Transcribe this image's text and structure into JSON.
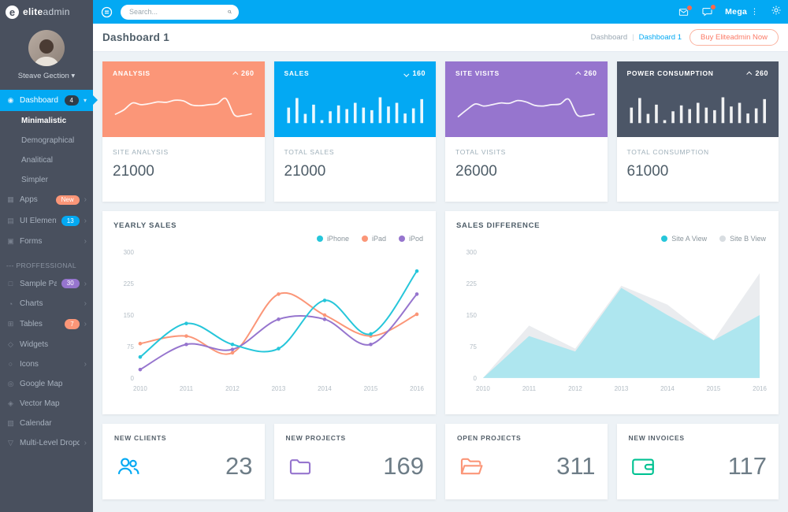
{
  "theme": {
    "accent": "#03a9f3",
    "salmon": "#fb9678",
    "purple": "#9675ce",
    "teal": "#26c6da",
    "green": "#00c292",
    "dark_slate": "#4c5667",
    "sidebar_bg": "#49505e",
    "notification_dot": "#ff6849"
  },
  "sidebar": {
    "logo_bold": "elite",
    "logo_light": "admin",
    "user_name": "Steave Gection",
    "items": [
      {
        "label": "Dashboard",
        "icon": "gauge-icon",
        "glyph": "◉",
        "badge": "4",
        "badge_color": "#2f3d4a",
        "active": true,
        "expanded": true
      },
      {
        "label": "Minimalistic",
        "sub": true,
        "current": true
      },
      {
        "label": "Demographical",
        "sub": true
      },
      {
        "label": "Analitical",
        "sub": true
      },
      {
        "label": "Simpler",
        "sub": true
      },
      {
        "label": "Apps",
        "icon": "apps-icon",
        "glyph": "▦",
        "badge": "New",
        "badge_color": "#fb9678",
        "chevron": true
      },
      {
        "label": "UI Elements",
        "icon": "layers-icon",
        "glyph": "▤",
        "badge": "13",
        "badge_color": "#03a9f3",
        "chevron": true
      },
      {
        "label": "Forms",
        "icon": "form-icon",
        "glyph": "▣",
        "chevron": true
      },
      {
        "type": "heading",
        "label": "--- PROFFESSIONAL"
      },
      {
        "label": "Sample Pages",
        "icon": "pages-icon",
        "glyph": "□",
        "badge": "30",
        "badge_color": "#9675ce",
        "chevron": true
      },
      {
        "label": "Charts",
        "icon": "chart-icon",
        "glyph": "◔",
        "chevron": true
      },
      {
        "label": "Tables",
        "icon": "table-icon",
        "glyph": "⊞",
        "badge": "7",
        "badge_color": "#fb9678",
        "chevron": true
      },
      {
        "label": "Widgets",
        "icon": "widgets-icon",
        "glyph": "◇"
      },
      {
        "label": "Icons",
        "icon": "icons-icon",
        "glyph": "○",
        "chevron": true
      },
      {
        "label": "Google Map",
        "icon": "map-pin-icon",
        "glyph": "◎"
      },
      {
        "label": "Vector Map",
        "icon": "vector-map-icon",
        "glyph": "◈"
      },
      {
        "label": "Calendar",
        "icon": "calendar-icon",
        "glyph": "▧"
      },
      {
        "label": "Multi-Level Dropdown",
        "icon": "dropdown-icon",
        "glyph": "▽",
        "chevron": true
      }
    ]
  },
  "topbar": {
    "search_placeholder": "Search...",
    "mega_label": "Mega"
  },
  "page": {
    "title": "Dashboard 1",
    "breadcrumb": [
      "Dashboard",
      "Dashboard 1"
    ],
    "buy_button": "Buy Eliteadmin Now"
  },
  "stat_cards": [
    {
      "title": "ANALYSIS",
      "trend": "up",
      "trend_value": "260",
      "label": "SITE ANALYSIS",
      "value": "21000",
      "color": "#fb9678",
      "chart_id": "spark-analysis"
    },
    {
      "title": "SALES",
      "trend": "down",
      "trend_value": "160",
      "label": "TOTAL SALES",
      "value": "21000",
      "color": "#03a9f3",
      "chart_id": "spark-sales"
    },
    {
      "title": "SITE VISITS",
      "trend": "up",
      "trend_value": "260",
      "label": "TOTAL VISITS",
      "value": "26000",
      "color": "#9675ce",
      "chart_id": "spark-visits"
    },
    {
      "title": "POWER CONSUMPTION",
      "trend": "up",
      "trend_value": "260",
      "label": "TOTAL CONSUMPTION",
      "value": "61000",
      "color": "#4c5667",
      "chart_id": "spark-power"
    }
  ],
  "chart_data": [
    {
      "id": "spark-analysis",
      "type": "line",
      "color": "#ffffff",
      "values": [
        22,
        35,
        55,
        50,
        53,
        58,
        57,
        63,
        61,
        49,
        47,
        50,
        53,
        68,
        20,
        18,
        23
      ]
    },
    {
      "id": "spark-sales",
      "type": "bar",
      "color": "#ffffff",
      "values": [
        42,
        68,
        25,
        50,
        8,
        32,
        48,
        38,
        55,
        42,
        35,
        70,
        45,
        55,
        26,
        40,
        65
      ]
    },
    {
      "id": "spark-visits",
      "type": "line",
      "color": "#ffffff",
      "values": [
        15,
        35,
        52,
        46,
        50,
        55,
        54,
        62,
        58,
        48,
        46,
        50,
        52,
        66,
        20,
        18,
        22
      ]
    },
    {
      "id": "spark-power",
      "type": "bar",
      "color": "#ffffff",
      "values": [
        42,
        68,
        25,
        50,
        8,
        32,
        48,
        38,
        55,
        42,
        35,
        70,
        45,
        55,
        26,
        40,
        65
      ]
    },
    {
      "id": "yearly-sales",
      "type": "line",
      "title": "YEARLY SALES",
      "smooth": true,
      "markers": true,
      "categories": [
        "2010",
        "2011",
        "2012",
        "2013",
        "2014",
        "2015",
        "2016"
      ],
      "ylim": [
        0,
        300
      ],
      "yticks": [
        0,
        75,
        150,
        225,
        300
      ],
      "legend_position": "top-right",
      "grid": false,
      "series": [
        {
          "name": "iPad",
          "color": "#fb9678",
          "values": [
            82,
            100,
            60,
            200,
            150,
            100,
            152
          ]
        },
        {
          "name": "iPod",
          "color": "#9675ce",
          "values": [
            20,
            80,
            68,
            140,
            140,
            80,
            200
          ]
        },
        {
          "name": "iPhone",
          "color": "#26c6da",
          "values": [
            50,
            130,
            80,
            70,
            185,
            105,
            255
          ]
        }
      ],
      "legend_order": [
        "iPhone",
        "iPad",
        "iPod"
      ]
    },
    {
      "id": "sales-difference",
      "type": "area",
      "title": "SALES DIFFERENCE",
      "smooth": false,
      "categories": [
        "2010",
        "2011",
        "2012",
        "2013",
        "2014",
        "2015",
        "2016"
      ],
      "ylim": [
        0,
        300
      ],
      "yticks": [
        0,
        75,
        150,
        225,
        300
      ],
      "legend_position": "top-right",
      "grid": false,
      "series": [
        {
          "name": "Site B View",
          "color": "#d8dde1",
          "fill": "#e9ebee",
          "values": [
            0,
            125,
            70,
            220,
            175,
            90,
            250
          ]
        },
        {
          "name": "Site A View",
          "color": "#26c6da",
          "fill": "#abe6ee",
          "values": [
            0,
            100,
            63,
            215,
            150,
            90,
            150
          ]
        }
      ],
      "legend_order": [
        "Site A View",
        "Site B View"
      ]
    }
  ],
  "bottom_cards": [
    {
      "label": "NEW CLIENTS",
      "value": "23",
      "icon": "users-icon",
      "color": "#03a9f3"
    },
    {
      "label": "NEW PROJECTS",
      "value": "169",
      "icon": "folder-icon",
      "color": "#9675ce"
    },
    {
      "label": "OPEN PROJECTS",
      "value": "311",
      "icon": "folder-open-icon",
      "color": "#fb9678"
    },
    {
      "label": "NEW INVOICES",
      "value": "117",
      "icon": "wallet-icon",
      "color": "#00c292"
    }
  ]
}
